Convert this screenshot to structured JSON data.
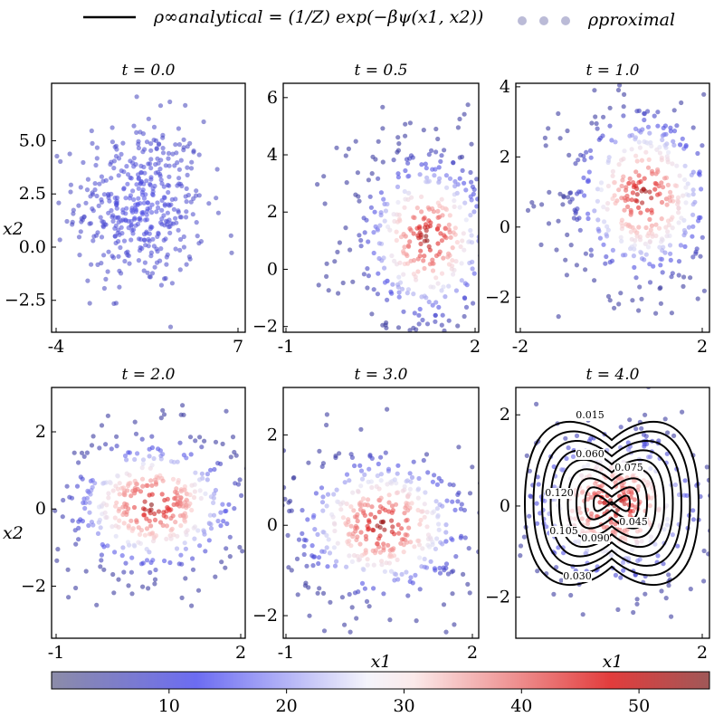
{
  "legend": {
    "analytical_label": "ρ∞analytical = (1/Z) exp(−βψ(x1, x2))",
    "proximal_label": "ρproximal"
  },
  "colorbar": {
    "ticks": [
      10,
      20,
      30,
      40,
      50
    ],
    "min": 0,
    "max": 56
  },
  "chart_data": [
    {
      "type": "scatter",
      "title": "t = 0.0",
      "xlabel": "",
      "ylabel": "x2",
      "xlim": [
        -4,
        7.3
      ],
      "ylim": [
        -4,
        7.7
      ],
      "xticks": [
        "-4",
        "7"
      ],
      "yticks": [
        "5.0",
        "2.5",
        "0.0",
        "−2.5"
      ],
      "cloud": {
        "cx": 1.2,
        "cy": 2.0,
        "sx": 1.9,
        "sy": 2.0,
        "n": 430
      }
    },
    {
      "type": "scatter",
      "title": "t = 0.5",
      "xlabel": "",
      "ylabel": "",
      "xlim": [
        -1,
        2.05
      ],
      "ylim": [
        -2.2,
        6.5
      ],
      "xticks": [
        "-1",
        "2"
      ],
      "yticks": [
        "6",
        "4",
        "2",
        "0",
        "−2"
      ],
      "cloud": {
        "cx": 1.25,
        "cy": 1.1,
        "sx": 0.75,
        "sy": 1.9,
        "n": 430
      }
    },
    {
      "type": "scatter",
      "title": "t = 1.0",
      "xlabel": "",
      "ylabel": "",
      "xlim": [
        -2,
        2.15
      ],
      "ylim": [
        -3.0,
        4.1
      ],
      "xticks": [
        "-2",
        "2"
      ],
      "yticks": [
        "4",
        "2",
        "0",
        "−2"
      ],
      "cloud": {
        "cx": 0.75,
        "cy": 0.9,
        "sx": 1.0,
        "sy": 1.45,
        "n": 430
      }
    },
    {
      "type": "scatter",
      "title": "t = 2.0",
      "xlabel": "",
      "ylabel": "x2",
      "xlim": [
        -1,
        2.05
      ],
      "ylim": [
        -3.35,
        3.15
      ],
      "xticks": [
        "-1",
        "2"
      ],
      "yticks": [
        "2",
        "0",
        "−2"
      ],
      "cloud": {
        "cx": 0.6,
        "cy": 0.1,
        "sx": 0.85,
        "sy": 1.15,
        "n": 430
      }
    },
    {
      "type": "scatter",
      "title": "t = 3.0",
      "xlabel": "x1",
      "ylabel": "",
      "xlim": [
        -1,
        2.05
      ],
      "ylim": [
        -2.5,
        3.05
      ],
      "xticks": [
        "-1",
        "2"
      ],
      "yticks": [
        "2",
        "0",
        "−2"
      ],
      "cloud": {
        "cx": 0.55,
        "cy": 0.0,
        "sx": 0.85,
        "sy": 1.05,
        "n": 430
      }
    },
    {
      "type": "scatter+contour",
      "title": "t = 4.0",
      "xlabel": "x1",
      "ylabel": "",
      "xlim": [
        -1,
        2.15
      ],
      "ylim": [
        -2.9,
        2.6
      ],
      "xticks": [
        "2"
      ],
      "yticks": [
        "2",
        "0",
        "−2"
      ],
      "cloud": {
        "cx": 0.6,
        "cy": 0.0,
        "sx": 0.9,
        "sy": 1.1,
        "n": 430
      },
      "contour_labels": [
        "0.015",
        "0.060",
        "0.075",
        "0.030",
        "0.090",
        "0.105",
        "0.120",
        "0.045"
      ]
    }
  ]
}
